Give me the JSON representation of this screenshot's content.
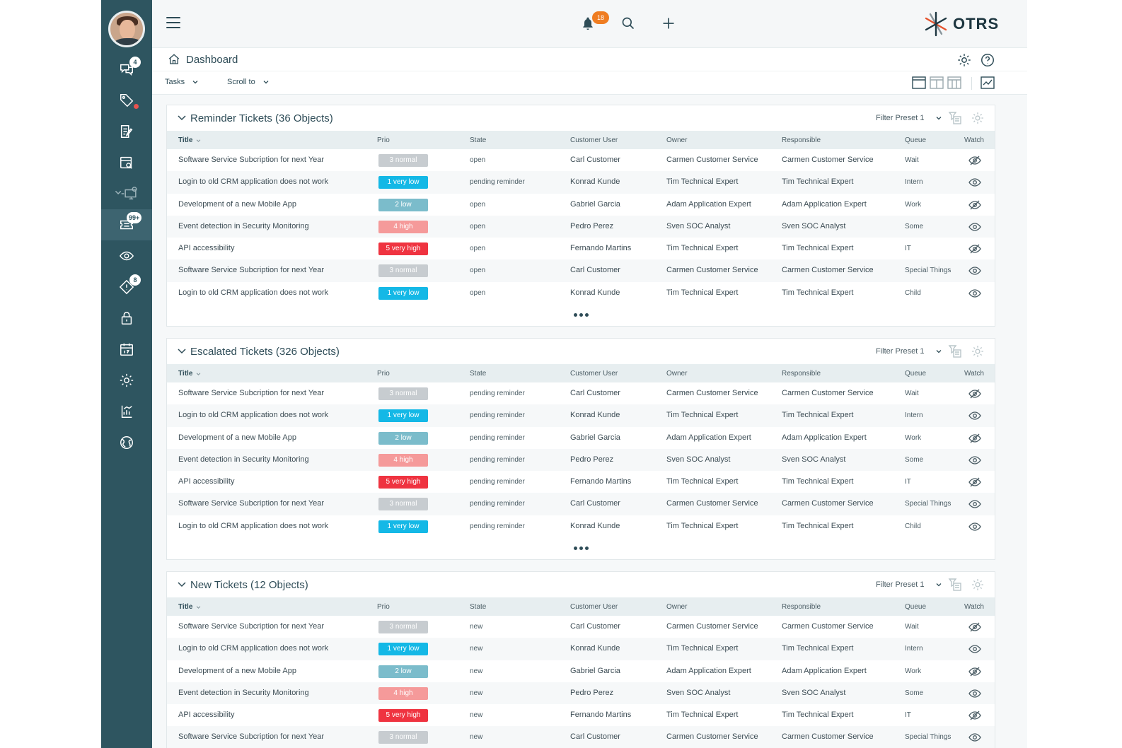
{
  "rail": {
    "badges": {
      "chat": "4",
      "tickets": "99+",
      "tasks": "8"
    }
  },
  "topbar": {
    "notification_count": "18",
    "logo_text": "OTRS"
  },
  "breadcrumb": {
    "label": "Dashboard"
  },
  "toolbar": {
    "tasks_label": "Tasks",
    "scroll_label": "Scroll to"
  },
  "columns": {
    "title": "Title",
    "prio": "Prio",
    "state": "State",
    "customer": "Customer User",
    "owner": "Owner",
    "responsible": "Responsible",
    "queue": "Queue",
    "watch": "Watch"
  },
  "filter_preset": "Filter Preset 1",
  "prio_colors": {
    "3 normal": "#c7ccd0",
    "1 very low": "#14b8e6",
    "2 low": "#7bbccb",
    "4 high": "#f59a9a",
    "5 very high": "#ef3340"
  },
  "widgets": [
    {
      "title": "Reminder Tickets (36 Objects)",
      "rows": [
        {
          "title": "Software Service Subcription for next Year",
          "prio": "3 normal",
          "state": "open",
          "customer": "Carl Customer",
          "owner": "Carmen Customer Service",
          "responsible": "Carmen Customer Service",
          "queue": "Wait",
          "watched": false
        },
        {
          "title": "Login to old CRM application does not work",
          "prio": "1 very low",
          "state": "pending reminder",
          "customer": "Konrad Kunde",
          "owner": "Tim Technical Expert",
          "responsible": "Tim Technical Expert",
          "queue": "Intern",
          "watched": true
        },
        {
          "title": "Development of a new Mobile App",
          "prio": "2 low",
          "state": "open",
          "customer": "Gabriel Garcia",
          "owner": "Adam Application Expert",
          "responsible": "Adam Application Expert",
          "queue": "Work",
          "watched": false
        },
        {
          "title": "Event detection in Security Monitoring",
          "prio": "4 high",
          "state": "open",
          "customer": "Pedro Perez",
          "owner": "Sven SOC Analyst",
          "responsible": "Sven SOC Analyst",
          "queue": "Some",
          "watched": true
        },
        {
          "title": "API accessibility",
          "prio": "5 very high",
          "state": "open",
          "customer": "Fernando Martins",
          "owner": "Tim Technical Expert",
          "responsible": "Tim Technical Expert",
          "queue": "IT",
          "watched": false
        },
        {
          "title": "Software Service Subcription for next Year",
          "prio": "3 normal",
          "state": "open",
          "customer": "Carl Customer",
          "owner": "Carmen Customer Service",
          "responsible": "Carmen Customer Service",
          "queue": "Special Things",
          "watched": true
        },
        {
          "title": "Login to old CRM application does not work",
          "prio": "1 very low",
          "state": "open",
          "customer": "Konrad Kunde",
          "owner": "Tim Technical Expert",
          "responsible": "Tim Technical Expert",
          "queue": "Child",
          "watched": true
        }
      ]
    },
    {
      "title": "Escalated Tickets (326 Objects)",
      "rows": [
        {
          "title": "Software Service Subcription for next Year",
          "prio": "3 normal",
          "state": "pending reminder",
          "customer": "Carl Customer",
          "owner": "Carmen Customer Service",
          "responsible": "Carmen Customer Service",
          "queue": "Wait",
          "watched": false
        },
        {
          "title": "Login to old CRM application does not work",
          "prio": "1 very low",
          "state": "pending reminder",
          "customer": "Konrad Kunde",
          "owner": "Tim Technical Expert",
          "responsible": "Tim Technical Expert",
          "queue": "Intern",
          "watched": true
        },
        {
          "title": "Development of a new Mobile App",
          "prio": "2 low",
          "state": "pending reminder",
          "customer": "Gabriel Garcia",
          "owner": "Adam Application Expert",
          "responsible": "Adam Application Expert",
          "queue": "Work",
          "watched": false
        },
        {
          "title": "Event detection in Security Monitoring",
          "prio": "4 high",
          "state": "pending reminder",
          "customer": "Pedro Perez",
          "owner": "Sven SOC Analyst",
          "responsible": "Sven SOC Analyst",
          "queue": "Some",
          "watched": true
        },
        {
          "title": "API accessibility",
          "prio": "5 very high",
          "state": "pending reminder",
          "customer": "Fernando Martins",
          "owner": "Tim Technical Expert",
          "responsible": "Tim Technical Expert",
          "queue": "IT",
          "watched": false
        },
        {
          "title": "Software Service Subcription for next Year",
          "prio": "3 normal",
          "state": "pending reminder",
          "customer": "Carl Customer",
          "owner": "Carmen Customer Service",
          "responsible": "Carmen Customer Service",
          "queue": "Special Things",
          "watched": true
        },
        {
          "title": "Login to old CRM application does not work",
          "prio": "1 very low",
          "state": "pending reminder",
          "customer": "Konrad Kunde",
          "owner": "Tim Technical Expert",
          "responsible": "Tim Technical Expert",
          "queue": "Child",
          "watched": true
        }
      ]
    },
    {
      "title": "New Tickets (12 Objects)",
      "rows": [
        {
          "title": "Software Service Subcription for next Year",
          "prio": "3 normal",
          "state": "new",
          "customer": "Carl Customer",
          "owner": "Carmen Customer Service",
          "responsible": "Carmen Customer Service",
          "queue": "Wait",
          "watched": false
        },
        {
          "title": "Login to old CRM application does not work",
          "prio": "1 very low",
          "state": "new",
          "customer": "Konrad Kunde",
          "owner": "Tim Technical Expert",
          "responsible": "Tim Technical Expert",
          "queue": "Intern",
          "watched": true
        },
        {
          "title": "Development of a new Mobile App",
          "prio": "2 low",
          "state": "new",
          "customer": "Gabriel Garcia",
          "owner": "Adam Application Expert",
          "responsible": "Adam Application Expert",
          "queue": "Work",
          "watched": false
        },
        {
          "title": "Event detection in Security Monitoring",
          "prio": "4 high",
          "state": "new",
          "customer": "Pedro Perez",
          "owner": "Sven SOC Analyst",
          "responsible": "Sven SOC Analyst",
          "queue": "Some",
          "watched": true
        },
        {
          "title": "API accessibility",
          "prio": "5 very high",
          "state": "new",
          "customer": "Fernando Martins",
          "owner": "Tim Technical Expert",
          "responsible": "Tim Technical Expert",
          "queue": "IT",
          "watched": false
        },
        {
          "title": "Software Service Subcription for next Year",
          "prio": "3 normal",
          "state": "new",
          "customer": "Carl Customer",
          "owner": "Carmen Customer Service",
          "responsible": "Carmen Customer Service",
          "queue": "Special Things",
          "watched": true
        }
      ]
    }
  ]
}
